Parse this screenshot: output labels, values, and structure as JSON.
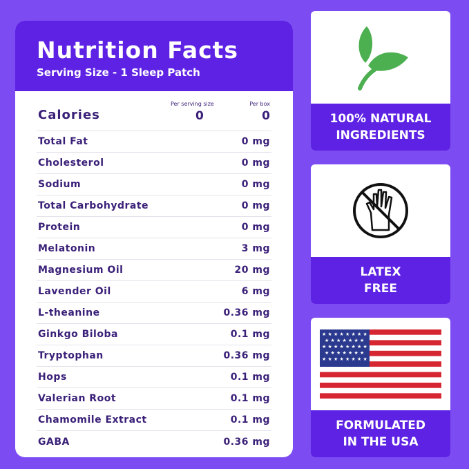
{
  "header": {
    "title": "Nutrition Facts",
    "serving": "Serving Size - 1 Sleep Patch"
  },
  "calories": {
    "label": "Calories",
    "col1": "Per serving size",
    "col2": "Per box",
    "per_serving": "0",
    "per_box": "0"
  },
  "rows": [
    {
      "name": "Total Fat",
      "value": "0 mg"
    },
    {
      "name": "Cholesterol",
      "value": "0 mg"
    },
    {
      "name": "Sodium",
      "value": "0 mg"
    },
    {
      "name": "Total Carbohydrate",
      "value": "0 mg"
    },
    {
      "name": "Protein",
      "value": "0 mg"
    },
    {
      "name": "Melatonin",
      "value": "3 mg"
    },
    {
      "name": "Magnesium Oil",
      "value": "20 mg"
    },
    {
      "name": "Lavender Oil",
      "value": "6 mg"
    },
    {
      "name": "L-theanine",
      "value": "0.36 mg"
    },
    {
      "name": "Ginkgo Biloba",
      "value": "0.1 mg"
    },
    {
      "name": "Tryptophan",
      "value": "0.36 mg"
    },
    {
      "name": "Hops",
      "value": "0.1 mg"
    },
    {
      "name": "Valerian Root",
      "value": "0.1 mg"
    },
    {
      "name": "Chamomile Extract",
      "value": "0.1 mg"
    },
    {
      "name": "GABA",
      "value": "0.36 mg"
    }
  ],
  "badges": [
    {
      "icon": "leaf-icon",
      "line1": "100% NATURAL",
      "line2": "INGREDIENTS"
    },
    {
      "icon": "no-latex-glove-icon",
      "line1": "LATEX",
      "line2": "FREE"
    },
    {
      "icon": "us-flag-icon",
      "line1": "FORMULATED",
      "line2": "IN THE USA"
    }
  ],
  "colors": {
    "background": "#7c4cf2",
    "accent": "#5e22e4",
    "text": "#3a2078",
    "leaf": "#4caf50"
  }
}
